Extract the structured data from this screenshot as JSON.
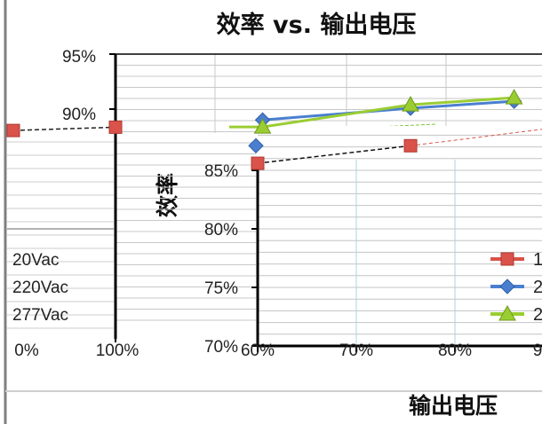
{
  "chart_data": [
    {
      "type": "line",
      "title": "效率 vs. 输出电压",
      "xlabel": "输出电压",
      "ylabel": "效率",
      "x_tick_labels": [
        "60%",
        "70%",
        "80%",
        "9"
      ],
      "y_tick_labels": [
        "70%",
        "75%",
        "80%",
        "85%",
        "90%",
        "95%"
      ],
      "xlim": [
        60,
        90
      ],
      "ylim": [
        70,
        95
      ],
      "grid": true,
      "legend_position": "right",
      "series": [
        {
          "name": "1",
          "color": "#d9534a",
          "marker": "square",
          "x": [
            60,
            75.5
          ],
          "y": [
            85.6,
            87.1
          ]
        },
        {
          "name": "2",
          "color": "#4a7fd0",
          "marker": "diamond",
          "x": [
            60.5,
            75.5,
            86
          ],
          "y": [
            89.3,
            90.3,
            90.9
          ]
        },
        {
          "name": "2",
          "color": "#9acd32",
          "marker": "triangle",
          "x": [
            60.5,
            75.5,
            86
          ],
          "y": [
            88.7,
            90.6,
            91.2
          ]
        }
      ]
    },
    {
      "type": "line",
      "x_tick_labels": [
        "0%",
        "100%"
      ],
      "y_tick_labels": [
        "90%",
        "95%"
      ],
      "legend": [
        "20Vac",
        "220Vac",
        "277Vac"
      ],
      "series": [
        {
          "color": "#d9534a",
          "marker": "square",
          "x": [
            0,
            100
          ],
          "y": [
            88.0,
            88.3
          ]
        }
      ]
    }
  ]
}
